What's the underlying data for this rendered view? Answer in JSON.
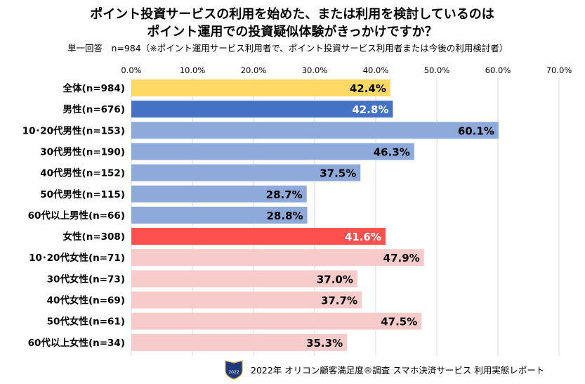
{
  "chart_data": {
    "type": "bar",
    "orientation": "horizontal",
    "title_line1": "ポイント投資サービスの利用を始めた、または利用を検討しているのは",
    "title_line2": "ポイント運用での投資疑似体験がきっかけですか？",
    "subtitle": "単一回答　n=984（※ポイント運用サービス利用者で、ポイント投資サービス利用者または今後の利用検討者）",
    "xlim": [
      0,
      70
    ],
    "xticks": [
      "0.0%",
      "10.0%",
      "20.0%",
      "30.0%",
      "40.0%",
      "50.0%",
      "60.0%",
      "70.0%"
    ],
    "grid": true,
    "categories": [
      "全体(n=984)",
      "男性(n=676)",
      "10･20代男性(n=153)",
      "30代男性(n=190)",
      "40代男性(n=152)",
      "50代男性(n=115)",
      "60代以上男性(n=66)",
      "女性(n=308)",
      "10･20代女性(n=71)",
      "30代女性(n=73)",
      "40代女性(n=69)",
      "50代女性(n=61)",
      "60代以上女性(n=34)"
    ],
    "values": [
      42.4,
      42.8,
      60.1,
      46.3,
      37.5,
      28.7,
      28.8,
      41.6,
      47.9,
      37.0,
      37.7,
      47.5,
      35.3
    ],
    "value_labels": [
      "42.4%",
      "42.8%",
      "60.1%",
      "46.3%",
      "37.5%",
      "28.7%",
      "28.8%",
      "41.6%",
      "47.9%",
      "37.0%",
      "37.7%",
      "47.5%",
      "35.3%"
    ],
    "colors": [
      "#ffd966",
      "#4472c4",
      "#8eaadb",
      "#8eaadb",
      "#8eaadb",
      "#8eaadb",
      "#8eaadb",
      "#ff5050",
      "#f8cbcb",
      "#f8cbcb",
      "#f8cbcb",
      "#f8cbcb",
      "#f8cbcb"
    ],
    "label_colors": [
      "#000000",
      "#ffffff",
      "#000000",
      "#000000",
      "#000000",
      "#000000",
      "#000000",
      "#ffffff",
      "#000000",
      "#000000",
      "#000000",
      "#000000",
      "#000000"
    ]
  },
  "footer": {
    "source": "2022年 オリコン顧客満足度®調査 スマホ決済サービス 利用実態レポート",
    "badge_text": "2022"
  }
}
